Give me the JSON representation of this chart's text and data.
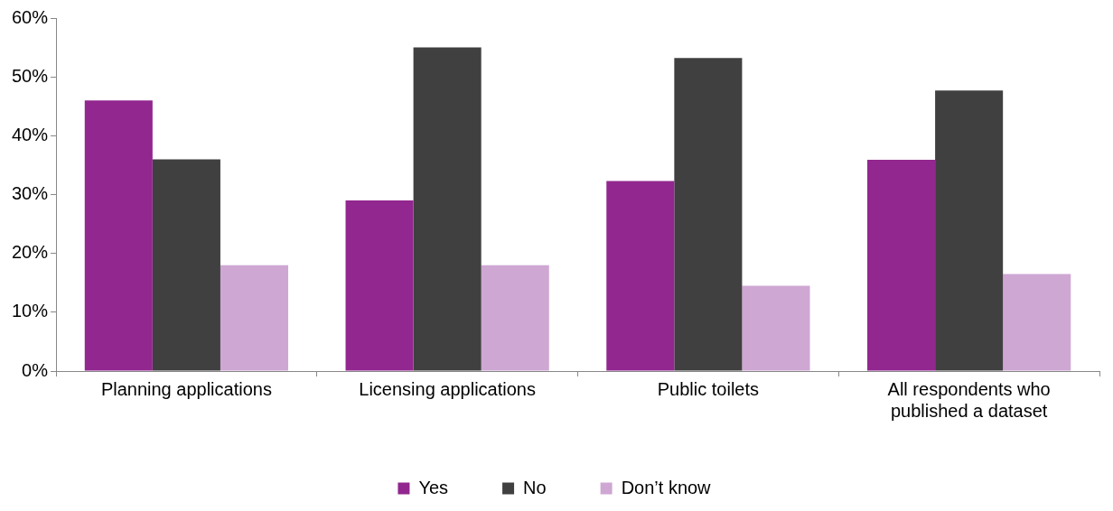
{
  "chart_data": {
    "type": "bar",
    "categories": [
      "Planning applications",
      "Licensing applications",
      "Public toilets",
      "All respondents who published a dataset"
    ],
    "series": [
      {
        "name": "Yes",
        "color": "#92278f",
        "values": [
          46,
          29,
          32.3,
          35.9
        ]
      },
      {
        "name": "No",
        "color": "#404040",
        "values": [
          36,
          55,
          53.2,
          47.7
        ]
      },
      {
        "name": "Don’t know",
        "color": "#cfa7d3",
        "values": [
          18,
          18,
          14.5,
          16.5
        ]
      }
    ],
    "ylim": [
      0,
      60
    ],
    "yticks": [
      {
        "value": 0,
        "label": "0%"
      },
      {
        "value": 10,
        "label": "10%"
      },
      {
        "value": 20,
        "label": "20%"
      },
      {
        "value": 30,
        "label": "30%"
      },
      {
        "value": 40,
        "label": "40%"
      },
      {
        "value": 50,
        "label": "50%"
      },
      {
        "value": 60,
        "label": "60%"
      }
    ],
    "grid": false,
    "legend": "bottom"
  }
}
